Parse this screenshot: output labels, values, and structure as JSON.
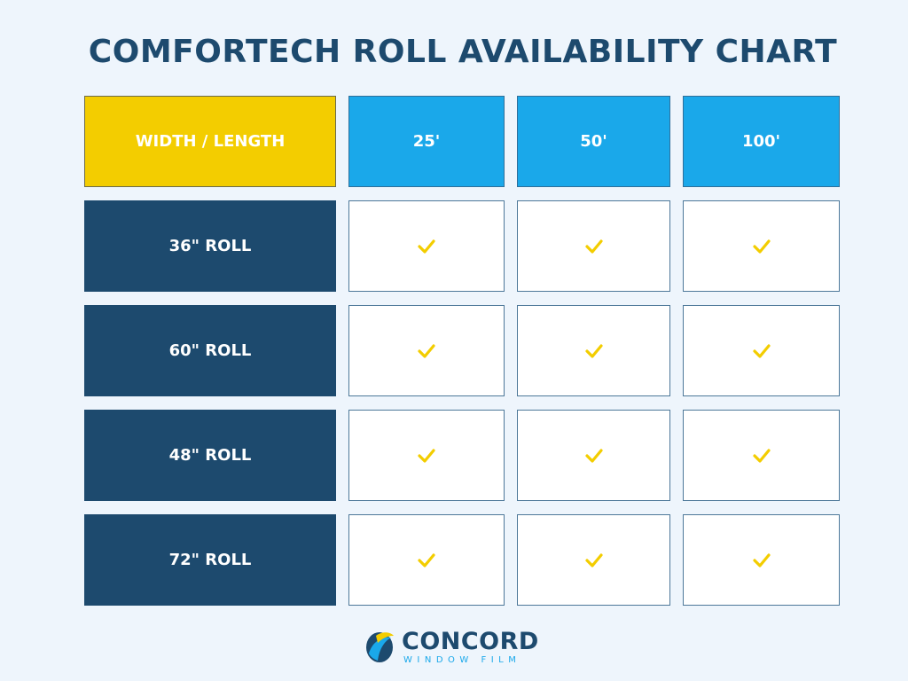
{
  "title": "COMFORTECH ROLL AVAILABILITY CHART",
  "table": {
    "corner_label": "WIDTH / LENGTH",
    "columns": [
      "25'",
      "50'",
      "100'"
    ],
    "rows": [
      {
        "label": "36\" ROLL",
        "available": [
          true,
          true,
          true
        ]
      },
      {
        "label": "60\" ROLL",
        "available": [
          true,
          true,
          true
        ]
      },
      {
        "label": "48\" ROLL",
        "available": [
          true,
          true,
          true
        ]
      },
      {
        "label": "72\" ROLL",
        "available": [
          true,
          true,
          true
        ]
      }
    ]
  },
  "logo": {
    "name": "CONCORD",
    "tagline": "WINDOW FILM"
  },
  "colors": {
    "title": "#1d4a6e",
    "corner": "#f3cd00",
    "column_header": "#1aa8ea",
    "row_header": "#1d4a6e",
    "check": "#f3cd00",
    "background": "#eef5fc"
  }
}
